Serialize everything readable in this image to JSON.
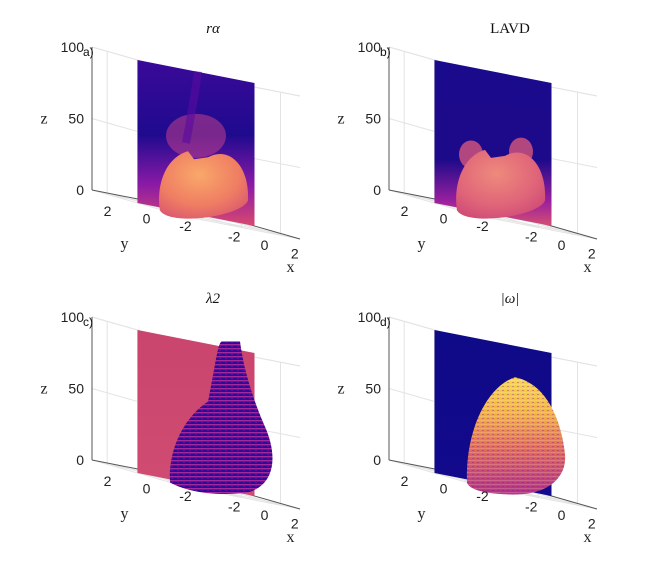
{
  "figure": {
    "colors": {
      "colormap": [
        "#0d0887",
        "#46039f",
        "#7201a8",
        "#9c179e",
        "#bd3786",
        "#d8576b",
        "#ed7953",
        "#fb9f3a",
        "#fdca26",
        "#f0f921"
      ],
      "background": "#ffffff",
      "grid": "#e3e3e3",
      "axis": "#555555"
    }
  },
  "chart_data": [
    {
      "type": "3d-surface",
      "panel_label": "a)",
      "title": "rα",
      "xlabel": "x",
      "ylabel": "y",
      "zlabel": "z",
      "xticks": [
        "-2",
        "0",
        "2"
      ],
      "yticks": [
        "2",
        "0",
        "-2"
      ],
      "zticks": [
        "0",
        "50",
        "100"
      ],
      "xlim": [
        -3,
        3
      ],
      "ylim": [
        -3,
        3
      ],
      "zlim": [
        0,
        100
      ],
      "slice_plane": "x = 0",
      "isosurface": {
        "top_z": 47,
        "level": 0.82
      }
    },
    {
      "type": "3d-surface",
      "panel_label": "b)",
      "title": "LAVD",
      "xlabel": "x",
      "ylabel": "y",
      "zlabel": "z",
      "xticks": [
        "-2",
        "0",
        "2"
      ],
      "yticks": [
        "2",
        "0",
        "-2"
      ],
      "zticks": [
        "0",
        "50",
        "100"
      ],
      "xlim": [
        -3,
        3
      ],
      "ylim": [
        -3,
        3
      ],
      "zlim": [
        0,
        100
      ],
      "slice_plane": "x = 0",
      "isosurface": {
        "top_z": 48,
        "level": 0.8
      }
    },
    {
      "type": "3d-surface",
      "panel_label": "c)",
      "title": "λ2",
      "xlabel": "x",
      "ylabel": "y",
      "zlabel": "z",
      "xticks": [
        "-2",
        "0",
        "2"
      ],
      "yticks": [
        "2",
        "0",
        "-2"
      ],
      "zticks": [
        "0",
        "50",
        "100"
      ],
      "xlim": [
        -3,
        3
      ],
      "ylim": [
        -3,
        3
      ],
      "zlim": [
        0,
        100
      ],
      "slice_plane": "x = 0",
      "isosurface": {
        "top_z": 100,
        "level": 0.25
      }
    },
    {
      "type": "3d-surface",
      "panel_label": "d)",
      "title": "|ω|",
      "xlabel": "x",
      "ylabel": "y",
      "zlabel": "z",
      "xticks": [
        "-2",
        "0",
        "2"
      ],
      "yticks": [
        "2",
        "0",
        "-2"
      ],
      "zticks": [
        "0",
        "50",
        "100"
      ],
      "xlim": [
        -3,
        3
      ],
      "ylim": [
        -3,
        3
      ],
      "zlim": [
        0,
        100
      ],
      "slice_plane": "x = 0",
      "isosurface": {
        "top_z": 75,
        "level": 0.7
      }
    }
  ]
}
